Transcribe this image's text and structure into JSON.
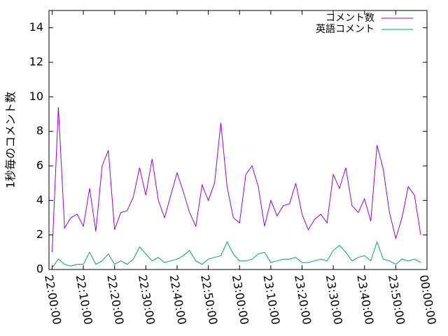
{
  "chart_data": {
    "type": "line",
    "ylabel": "1秒毎のコメント数",
    "x": [
      "22:00:00",
      "22:02:00",
      "22:04:00",
      "22:06:00",
      "22:08:00",
      "22:10:00",
      "22:12:00",
      "22:14:00",
      "22:16:00",
      "22:18:00",
      "22:20:00",
      "22:22:00",
      "22:24:00",
      "22:26:00",
      "22:28:00",
      "22:30:00",
      "22:32:00",
      "22:34:00",
      "22:36:00",
      "22:38:00",
      "22:40:00",
      "22:42:00",
      "22:44:00",
      "22:46:00",
      "22:48:00",
      "22:50:00",
      "22:52:00",
      "22:54:00",
      "22:56:00",
      "22:58:00",
      "23:00:00",
      "23:02:00",
      "23:04:00",
      "23:06:00",
      "23:08:00",
      "23:10:00",
      "23:12:00",
      "23:14:00",
      "23:16:00",
      "23:18:00",
      "23:20:00",
      "23:22:00",
      "23:24:00",
      "23:26:00",
      "23:28:00",
      "23:30:00",
      "23:32:00",
      "23:34:00",
      "23:36:00",
      "23:38:00",
      "23:40:00",
      "23:42:00",
      "23:44:00",
      "23:46:00",
      "23:48:00",
      "23:50:00",
      "23:52:00",
      "23:54:00",
      "23:56:00",
      "23:58:00"
    ],
    "series": [
      {
        "name": "コメント数",
        "color": "#9400d3",
        "values": [
          1.0,
          9.4,
          2.4,
          3.0,
          3.2,
          2.5,
          4.7,
          2.2,
          6.0,
          6.9,
          2.3,
          3.3,
          3.4,
          4.2,
          5.9,
          4.3,
          6.4,
          4.0,
          3.0,
          4.3,
          5.6,
          4.5,
          3.3,
          2.5,
          4.9,
          4.0,
          5.0,
          8.5,
          4.8,
          3.0,
          2.7,
          5.5,
          6.0,
          4.8,
          2.5,
          4.0,
          3.1,
          3.7,
          3.8,
          5.0,
          3.2,
          2.3,
          2.9,
          3.2,
          2.7,
          5.5,
          4.7,
          5.9,
          3.7,
          3.3,
          4.1,
          2.8,
          7.2,
          5.8,
          3.3,
          1.8,
          3.0,
          4.8,
          4.3,
          2.0
        ]
      },
      {
        "name": "英語コメント",
        "color": "#009e73",
        "values": [
          0.1,
          0.6,
          0.3,
          0.2,
          0.3,
          0.3,
          1.0,
          0.3,
          0.5,
          0.9,
          0.3,
          0.5,
          0.3,
          0.6,
          1.3,
          0.9,
          0.5,
          0.7,
          0.4,
          0.5,
          0.6,
          0.8,
          1.1,
          0.5,
          0.3,
          0.6,
          0.7,
          0.8,
          1.6,
          0.9,
          0.5,
          0.5,
          0.6,
          0.9,
          1.0,
          0.4,
          0.5,
          0.6,
          0.6,
          0.7,
          0.4,
          0.4,
          0.5,
          0.6,
          0.5,
          1.1,
          1.4,
          1.0,
          0.5,
          0.7,
          0.8,
          0.5,
          1.6,
          0.6,
          0.5,
          0.3,
          0.6,
          0.5,
          0.6,
          0.4
        ]
      }
    ],
    "xlim": [
      "21:59:00",
      "00:00:00"
    ],
    "xticks": [
      "22:00:00",
      "22:10:00",
      "22:20:00",
      "22:30:00",
      "22:40:00",
      "22:50:00",
      "23:00:00",
      "23:10:00",
      "23:20:00",
      "23:30:00",
      "23:40:00",
      "23:50:00",
      "00:00:00"
    ],
    "ylim": [
      0,
      15
    ],
    "yticks": [
      0,
      2,
      4,
      6,
      8,
      10,
      12,
      14
    ],
    "legend": "top-right"
  }
}
